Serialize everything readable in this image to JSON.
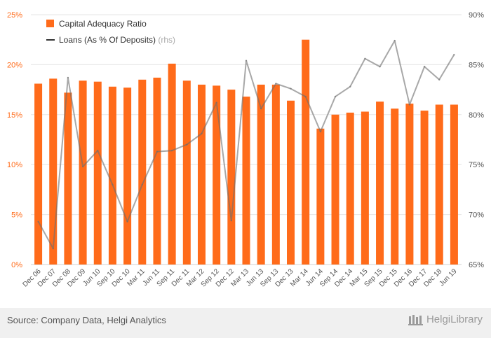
{
  "chart_data": {
    "type": "bar",
    "categories": [
      "Dec 06",
      "Dec 07",
      "Dec 08",
      "Dec 09",
      "Jun 10",
      "Sep 10",
      "Dec 10",
      "Mar 11",
      "Jun 11",
      "Sep 11",
      "Dec 11",
      "Mar 12",
      "Sep 12",
      "Dec 12",
      "Mar 13",
      "Jun 13",
      "Sep 13",
      "Dec 13",
      "Mar 14",
      "Jun 14",
      "Sep 14",
      "Dec 14",
      "Mar 15",
      "Sep 15",
      "Dec 15",
      "Dec 16",
      "Dec 17",
      "Dec 18",
      "Jun 19"
    ],
    "series": [
      {
        "name": "Capital Adequacy Ratio",
        "type": "bar",
        "axis": "left",
        "color": "#ff6b1a",
        "values": [
          18.1,
          18.6,
          17.2,
          18.4,
          18.3,
          17.8,
          17.7,
          18.5,
          18.7,
          20.1,
          18.4,
          18.0,
          17.9,
          17.5,
          16.8,
          18.0,
          18.0,
          16.4,
          22.5,
          13.6,
          15.0,
          15.2,
          15.3,
          16.3,
          15.6,
          16.1,
          15.4,
          16.0,
          16.0
        ]
      },
      {
        "name": "Loans (As % Of Deposits)",
        "name_suffix": "(rhs)",
        "type": "line",
        "axis": "right",
        "color": "#999999",
        "values": [
          69.3,
          66.6,
          83.7,
          74.8,
          76.4,
          73.0,
          69.3,
          73.0,
          76.3,
          76.4,
          77.0,
          78.1,
          81.2,
          69.4,
          85.4,
          80.6,
          83.1,
          82.6,
          81.8,
          78.3,
          81.8,
          82.8,
          85.6,
          84.8,
          87.4,
          81.0,
          84.8,
          83.5,
          86.0
        ]
      }
    ],
    "left_axis": {
      "ticks": [
        "0%",
        "5%",
        "10%",
        "15%",
        "20%",
        "25%"
      ],
      "min": 0,
      "max": 25
    },
    "right_axis": {
      "ticks": [
        "65%",
        "70%",
        "75%",
        "80%",
        "85%",
        "90%"
      ],
      "min": 65,
      "max": 90
    },
    "legend_position": "top-left",
    "grid": true
  },
  "footer": {
    "source": "Source: Company Data, Helgi Analytics",
    "brand": "HelgiLibrary"
  },
  "colors": {
    "bar": "#ff6b1a",
    "axis_text": "#ff6b1a",
    "right_axis_text": "#555555",
    "line": "#999999"
  }
}
